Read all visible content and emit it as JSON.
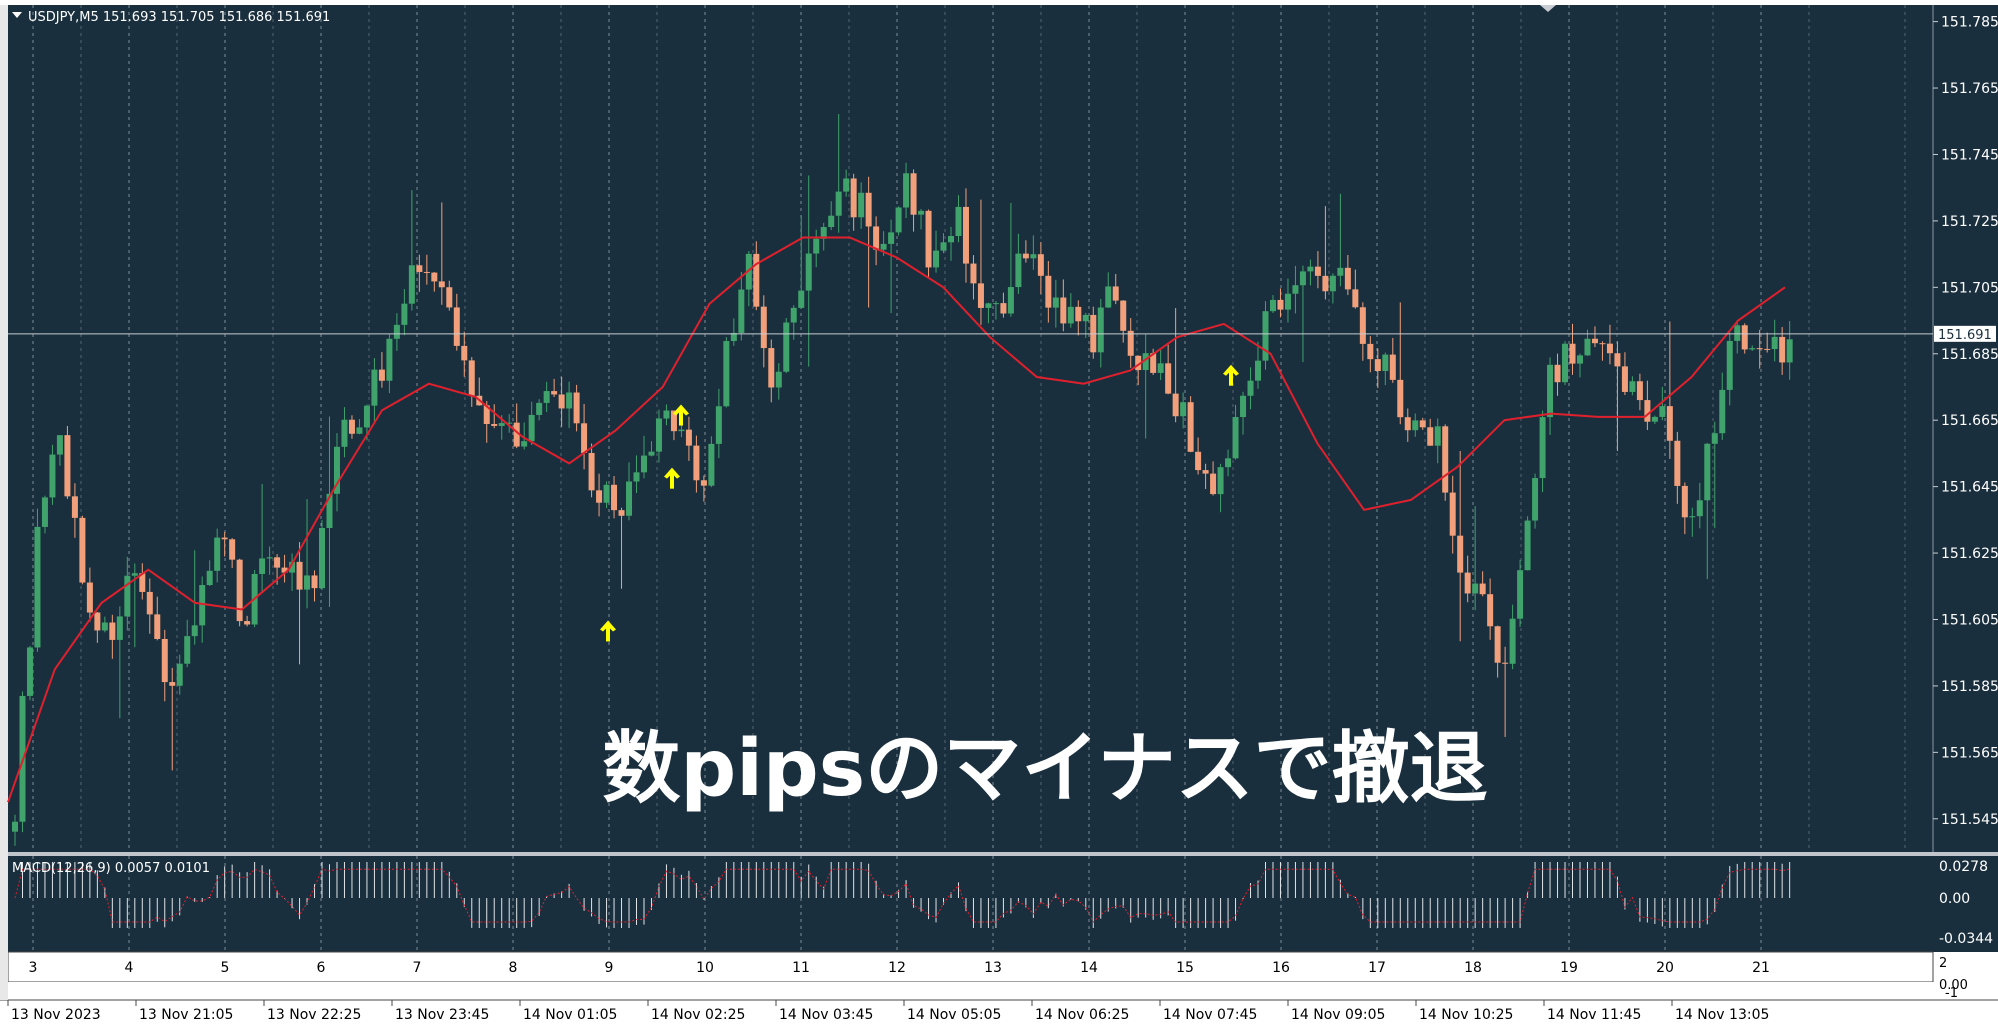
{
  "header": {
    "symbol_info": "USDJPY,M5  151.693 151.705 151.686 151.691"
  },
  "overlay": {
    "caption": "数pipsのマイナスで撤退"
  },
  "current_price": "151.691",
  "price_labels": [
    "151.785",
    "151.765",
    "151.745",
    "151.725",
    "151.705",
    "151.685",
    "151.665",
    "151.645",
    "151.625",
    "151.605",
    "151.585",
    "151.565",
    "151.545"
  ],
  "day_labels": [
    "3",
    "4",
    "5",
    "6",
    "7",
    "8",
    "9",
    "10",
    "11",
    "12",
    "13",
    "14",
    "15",
    "16",
    "17",
    "18",
    "19",
    "20",
    "21"
  ],
  "time_labels": [
    "13 Nov 2023",
    "13 Nov 21:05",
    "13 Nov 22:25",
    "13 Nov 23:45",
    "14 Nov 01:05",
    "14 Nov 02:25",
    "14 Nov 03:45",
    "14 Nov 05:05",
    "14 Nov 06:25",
    "14 Nov 07:45",
    "14 Nov 09:05",
    "14 Nov 10:25",
    "14 Nov 11:45",
    "14 Nov 13:05"
  ],
  "macd": {
    "label": "MACD(12,26,9) 0.0057 0.0101",
    "axis_labels": [
      "0.0278",
      "0.00",
      "-0.0344"
    ]
  },
  "bottom_axis_labels": [
    "2",
    "0.00",
    "-1"
  ],
  "colors": {
    "background": "#1a2f3e",
    "bull": "#3fa36b",
    "bear": "#f2a07b",
    "ma_line": "#e0202c",
    "arrow": "#ffff00",
    "grid": "#7f8c95"
  },
  "chart_data": {
    "type": "candlestick",
    "symbol": "USDJPY",
    "timeframe": "M5",
    "ylim": [
      151.535,
      151.79
    ],
    "close_path": [
      151.55,
      151.63,
      151.66,
      151.615,
      151.598,
      151.617,
      151.6,
      151.585,
      151.612,
      151.629,
      151.605,
      151.628,
      151.62,
      151.611,
      151.655,
      151.668,
      151.68,
      151.705,
      151.712,
      151.695,
      151.672,
      151.665,
      151.662,
      151.668,
      151.674,
      151.645,
      151.64,
      151.643,
      151.66,
      151.668,
      151.64,
      151.686,
      151.712,
      151.672,
      151.7,
      151.718,
      151.735,
      151.73,
      151.712,
      151.738,
      151.71,
      151.728,
      151.705,
      151.692,
      151.715,
      151.705,
      151.695,
      151.69,
      151.705,
      151.68,
      151.685,
      151.665,
      151.645,
      151.655,
      151.685,
      151.7,
      151.712,
      151.705,
      151.708,
      151.69,
      151.68,
      151.66,
      151.664,
      151.62,
      151.612,
      151.585,
      151.64,
      151.68,
      151.685,
      151.685,
      151.678,
      151.672,
      151.665,
      151.632,
      151.66,
      151.695,
      151.688,
      151.685,
      151.703,
      151.705,
      151.71,
      151.718,
      151.7,
      151.69
    ],
    "ma_path": [
      151.55,
      151.59,
      151.61,
      151.62,
      151.61,
      151.608,
      151.62,
      151.645,
      151.668,
      151.676,
      151.672,
      151.66,
      151.652,
      151.662,
      151.675,
      151.7,
      151.712,
      151.72,
      151.72,
      151.714,
      151.705,
      151.69,
      151.678,
      151.676,
      151.68,
      151.69,
      151.694,
      151.685,
      151.658,
      151.638,
      151.641,
      151.651,
      151.665,
      151.667,
      151.666,
      151.666,
      151.678,
      151.695,
      151.705
    ],
    "signal_arrows": [
      {
        "price": 151.602
      },
      {
        "price": 151.648
      },
      {
        "price": 151.667
      },
      {
        "price": 151.679
      }
    ],
    "ylabel": "",
    "xlabel": ""
  }
}
